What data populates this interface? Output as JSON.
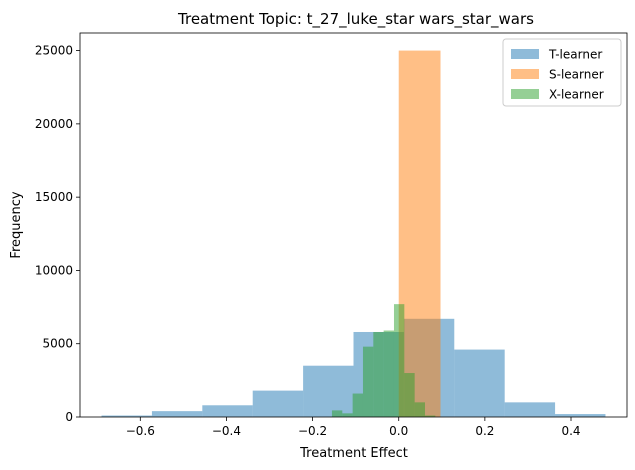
{
  "chart_data": {
    "type": "histogram",
    "title": "Treatment Topic: t_27_luke_star wars_star_wars",
    "xlabel": "Treatment Effect",
    "ylabel": "Frequency",
    "xlim": [
      -0.74,
      0.53
    ],
    "ylim": [
      0,
      26200
    ],
    "xticks": [
      -0.6,
      -0.4,
      -0.2,
      0.0,
      0.2,
      0.4
    ],
    "xtick_labels": [
      "−0.6",
      "−0.4",
      "−0.2",
      "0.0",
      "0.2",
      "0.4"
    ],
    "yticks": [
      0,
      5000,
      10000,
      15000,
      20000,
      25000
    ],
    "ytick_labels": [
      "0",
      "5000",
      "10000",
      "15000",
      "20000",
      "25000"
    ],
    "legend_position": "top-right",
    "series": [
      {
        "name": "T-learner",
        "color": "#1f77b4",
        "alpha": 0.5,
        "bins": [
          {
            "x0": -0.69,
            "x1": -0.573,
            "count": 100
          },
          {
            "x0": -0.573,
            "x1": -0.456,
            "count": 400
          },
          {
            "x0": -0.456,
            "x1": -0.339,
            "count": 800
          },
          {
            "x0": -0.339,
            "x1": -0.222,
            "count": 1800
          },
          {
            "x0": -0.222,
            "x1": -0.105,
            "count": 3500
          },
          {
            "x0": -0.105,
            "x1": 0.012,
            "count": 5800
          },
          {
            "x0": 0.012,
            "x1": 0.129,
            "count": 6700
          },
          {
            "x0": 0.129,
            "x1": 0.246,
            "count": 4600
          },
          {
            "x0": 0.246,
            "x1": 0.363,
            "count": 1000
          },
          {
            "x0": 0.363,
            "x1": 0.48,
            "count": 200
          }
        ]
      },
      {
        "name": "S-learner",
        "color": "#ff7f0e",
        "alpha": 0.5,
        "bins": [
          {
            "x0": 0.0,
            "x1": 0.097,
            "count": 25000
          }
        ]
      },
      {
        "name": "X-learner",
        "color": "#2ca02c",
        "alpha": 0.5,
        "bins": [
          {
            "x0": -0.155,
            "x1": -0.131,
            "count": 450
          },
          {
            "x0": -0.131,
            "x1": -0.107,
            "count": 250
          },
          {
            "x0": -0.107,
            "x1": -0.083,
            "count": 1600
          },
          {
            "x0": -0.083,
            "x1": -0.059,
            "count": 4800
          },
          {
            "x0": -0.059,
            "x1": -0.035,
            "count": 5800
          },
          {
            "x0": -0.035,
            "x1": -0.011,
            "count": 5900
          },
          {
            "x0": -0.011,
            "x1": 0.013,
            "count": 7700
          },
          {
            "x0": 0.013,
            "x1": 0.037,
            "count": 3000
          },
          {
            "x0": 0.037,
            "x1": 0.061,
            "count": 1000
          },
          {
            "x0": 0.061,
            "x1": 0.085,
            "count": 100
          }
        ]
      }
    ]
  }
}
